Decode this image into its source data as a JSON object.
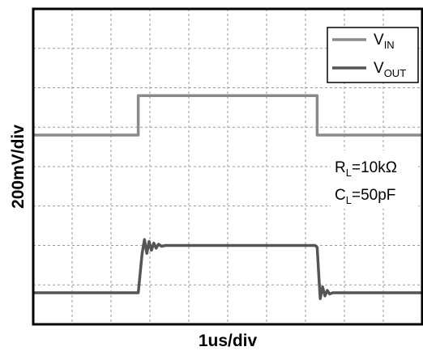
{
  "chart_data": {
    "type": "line",
    "xlabel": "1us/div",
    "ylabel": "200mV/div",
    "x_divisions": 10,
    "y_divisions": 8,
    "grid": true,
    "legend_position": "top-right",
    "x_range_div": [
      0,
      10
    ],
    "y_range_div": [
      0,
      8
    ],
    "series": [
      {
        "name": "VIN",
        "label_main": "V",
        "label_sub": "IN",
        "color": "#8a8a8a",
        "x": [
          0,
          2.7,
          2.7,
          7.3,
          7.3,
          10
        ],
        "y": [
          4.8,
          4.8,
          5.8,
          5.8,
          4.8,
          4.8
        ]
      },
      {
        "name": "VOUT",
        "label_main": "V",
        "label_sub": "OUT",
        "color": "#555555",
        "x": [
          0,
          2.7,
          2.8,
          2.86,
          2.92,
          2.98,
          3.04,
          3.1,
          3.16,
          3.22,
          3.3,
          3.4,
          7.25,
          7.3,
          7.35,
          7.38,
          7.44,
          7.5,
          7.56,
          7.62,
          7.7,
          10
        ],
        "y": [
          0.8,
          0.8,
          1.8,
          2.15,
          1.8,
          2.1,
          1.88,
          2.06,
          1.93,
          2.03,
          1.98,
          2.0,
          2.0,
          1.95,
          1.1,
          0.65,
          0.95,
          0.72,
          0.86,
          0.77,
          0.8,
          0.8
        ]
      }
    ],
    "annotations": [
      {
        "main": "R",
        "sub": "L",
        "rest": "=10kΩ"
      },
      {
        "main": "C",
        "sub": "L",
        "rest": "=50pF"
      }
    ]
  }
}
